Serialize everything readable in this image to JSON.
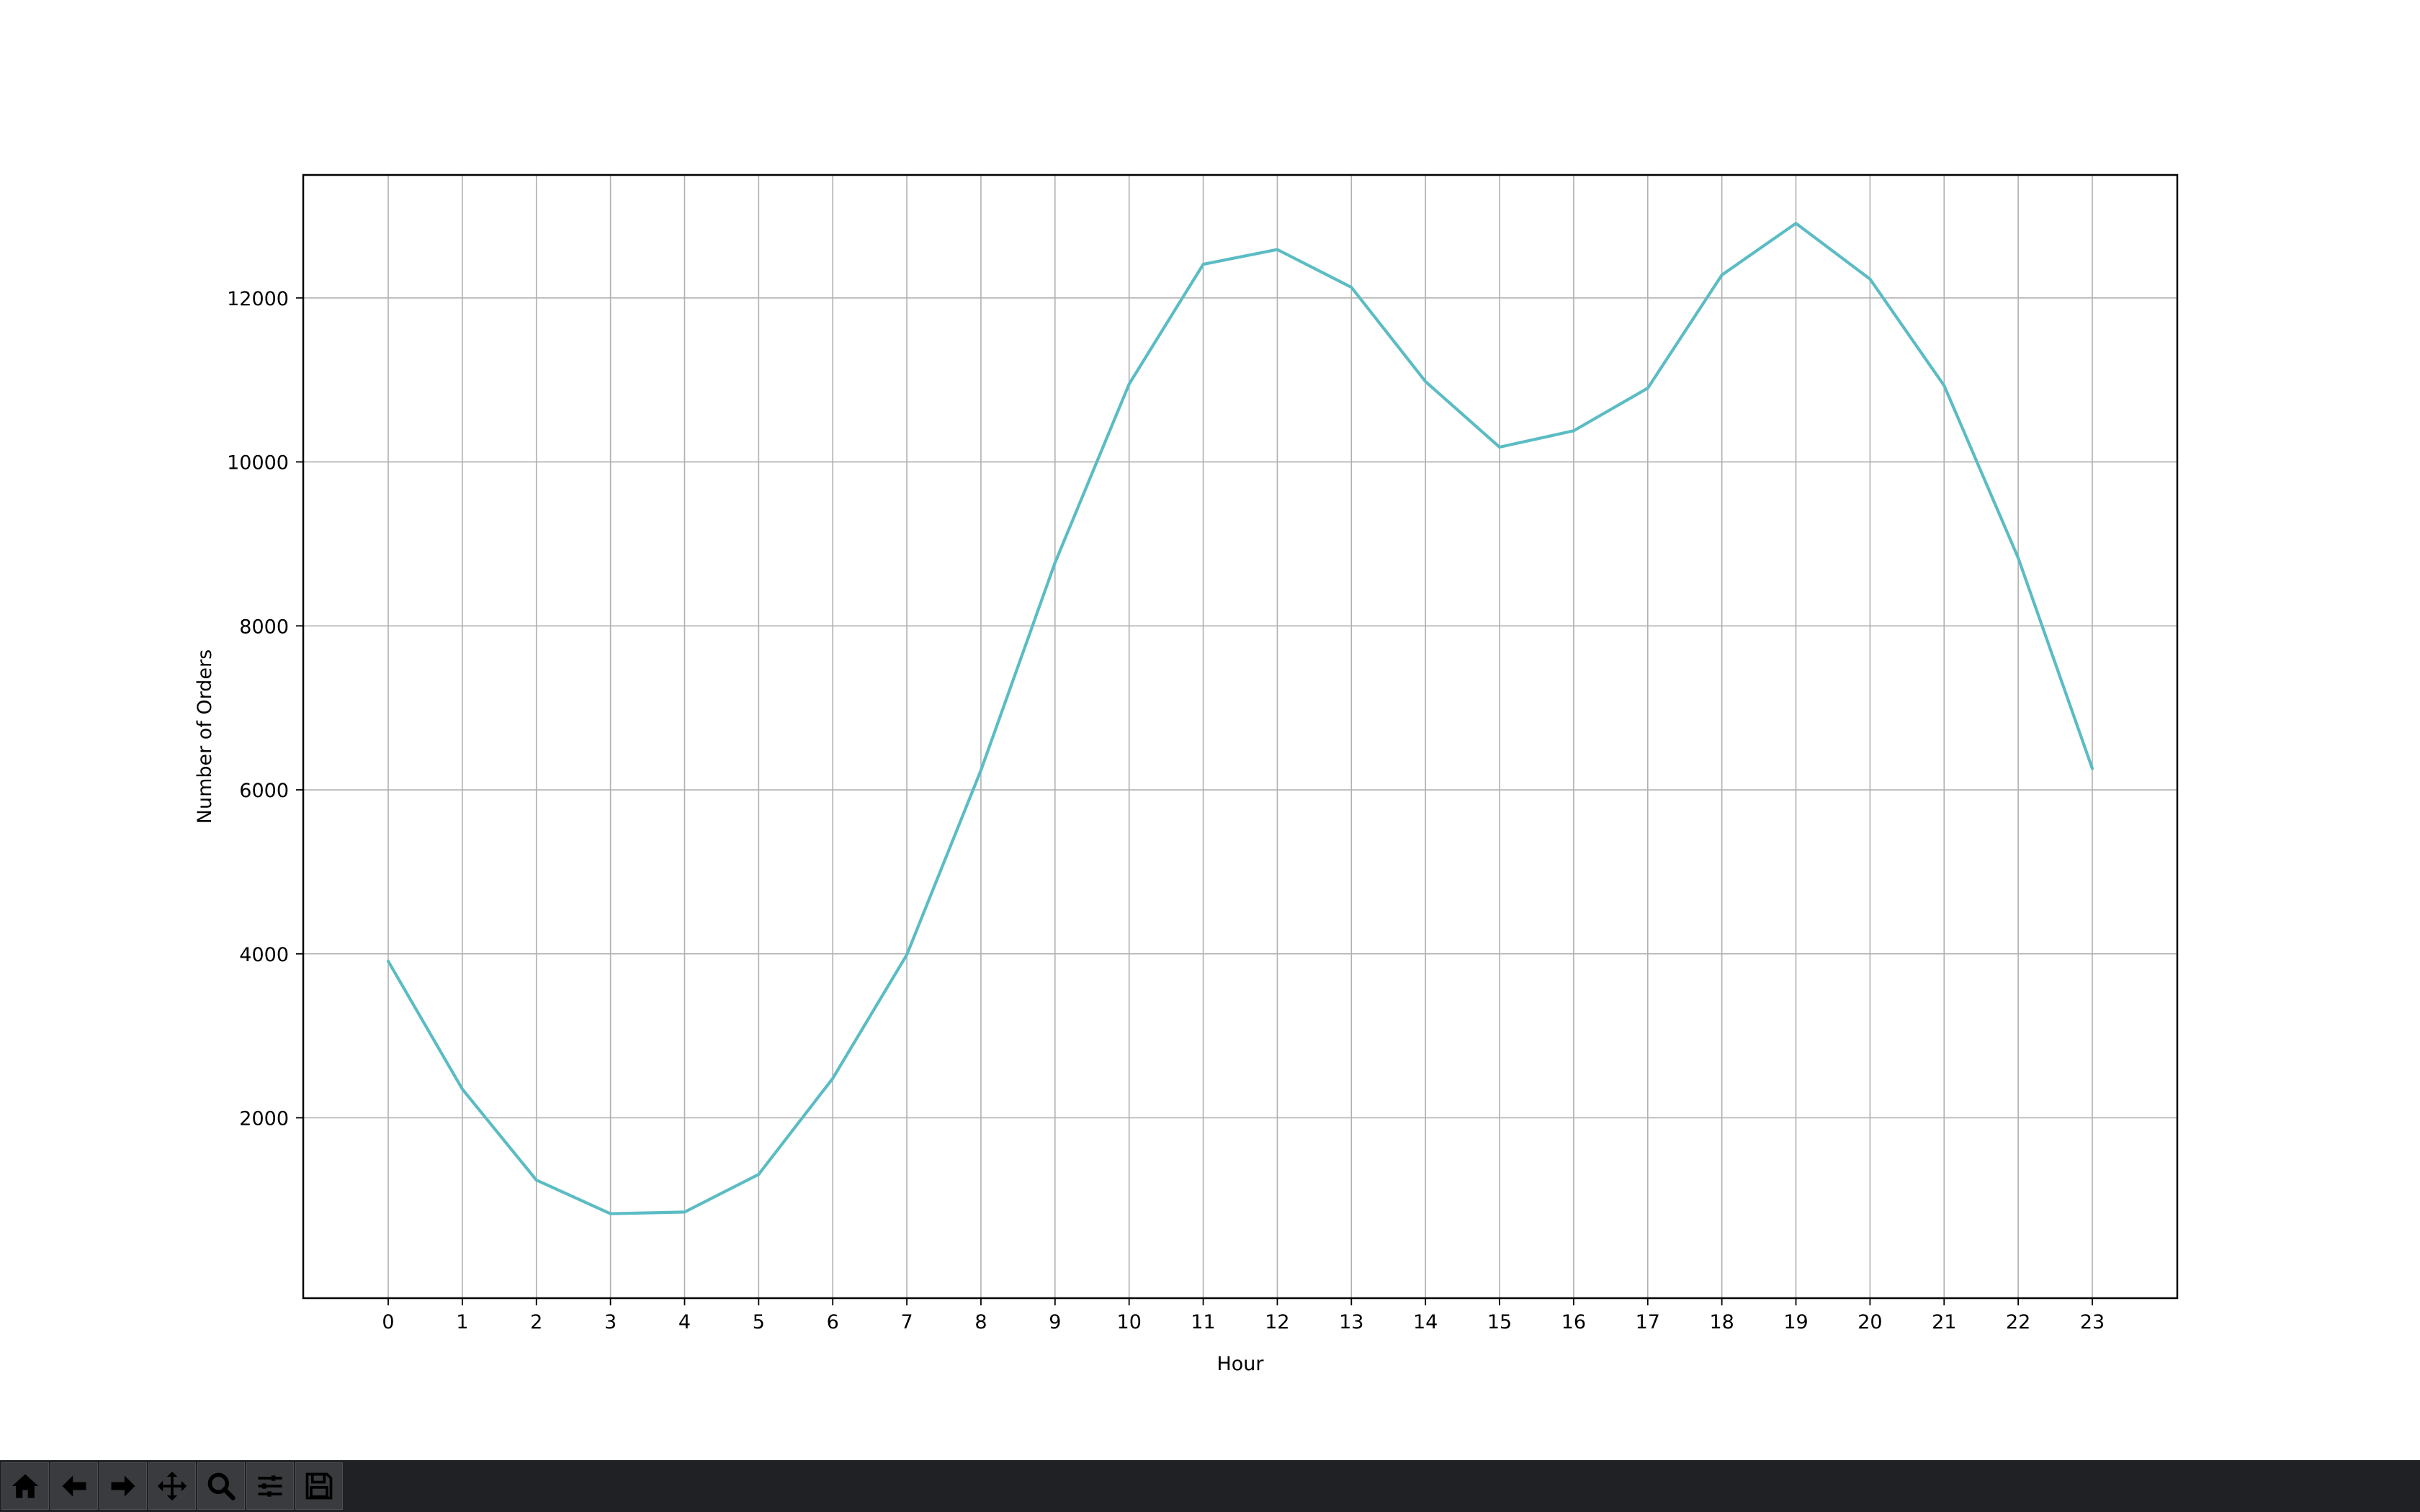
{
  "chart_data": {
    "type": "line",
    "title": "",
    "xlabel": "Hour",
    "ylabel": "Number of Orders",
    "x": [
      0,
      1,
      2,
      3,
      4,
      5,
      6,
      7,
      8,
      9,
      10,
      11,
      12,
      13,
      14,
      15,
      16,
      17,
      18,
      19,
      20,
      21,
      22,
      23
    ],
    "y_ticks": [
      2000,
      4000,
      6000,
      8000,
      10000,
      12000
    ],
    "ylim": [
      -200,
      13500
    ],
    "grid": true,
    "series": [
      {
        "color": "#5bbcc4",
        "values": [
          3910,
          2350,
          1240,
          830,
          850,
          1310,
          2480,
          3990,
          6240,
          8770,
          10950,
          12410,
          12590,
          12130,
          10980,
          10180,
          10380,
          10900,
          12280,
          12910,
          12230,
          10930,
          8830,
          6260
        ]
      }
    ]
  },
  "toolbar": {
    "buttons": [
      {
        "icon": "home-icon"
      },
      {
        "icon": "back-arrow-icon"
      },
      {
        "icon": "forward-arrow-icon"
      },
      {
        "icon": "pan-icon"
      },
      {
        "icon": "zoom-icon"
      },
      {
        "icon": "configure-subplots-icon"
      },
      {
        "icon": "save-icon"
      }
    ]
  }
}
